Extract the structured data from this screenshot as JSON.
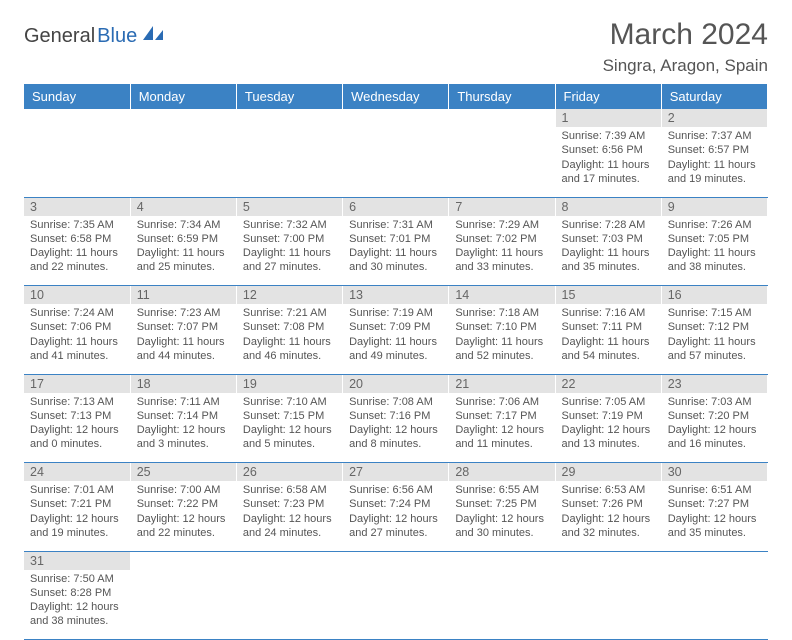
{
  "logo": {
    "text1": "General",
    "text2": "Blue"
  },
  "title": "March 2024",
  "location": "Singra, Aragon, Spain",
  "day_headers": [
    "Sunday",
    "Monday",
    "Tuesday",
    "Wednesday",
    "Thursday",
    "Friday",
    "Saturday"
  ],
  "colors": {
    "header_bg": "#3b82c4",
    "header_fg": "#ffffff",
    "daynum_bg": "#e3e3e3",
    "text": "#555555",
    "border": "#3b82c4"
  },
  "weeks": [
    [
      null,
      null,
      null,
      null,
      null,
      {
        "n": "1",
        "sunrise": "7:39 AM",
        "sunset": "6:56 PM",
        "daylight": "11 hours and 17 minutes."
      },
      {
        "n": "2",
        "sunrise": "7:37 AM",
        "sunset": "6:57 PM",
        "daylight": "11 hours and 19 minutes."
      }
    ],
    [
      {
        "n": "3",
        "sunrise": "7:35 AM",
        "sunset": "6:58 PM",
        "daylight": "11 hours and 22 minutes."
      },
      {
        "n": "4",
        "sunrise": "7:34 AM",
        "sunset": "6:59 PM",
        "daylight": "11 hours and 25 minutes."
      },
      {
        "n": "5",
        "sunrise": "7:32 AM",
        "sunset": "7:00 PM",
        "daylight": "11 hours and 27 minutes."
      },
      {
        "n": "6",
        "sunrise": "7:31 AM",
        "sunset": "7:01 PM",
        "daylight": "11 hours and 30 minutes."
      },
      {
        "n": "7",
        "sunrise": "7:29 AM",
        "sunset": "7:02 PM",
        "daylight": "11 hours and 33 minutes."
      },
      {
        "n": "8",
        "sunrise": "7:28 AM",
        "sunset": "7:03 PM",
        "daylight": "11 hours and 35 minutes."
      },
      {
        "n": "9",
        "sunrise": "7:26 AM",
        "sunset": "7:05 PM",
        "daylight": "11 hours and 38 minutes."
      }
    ],
    [
      {
        "n": "10",
        "sunrise": "7:24 AM",
        "sunset": "7:06 PM",
        "daylight": "11 hours and 41 minutes."
      },
      {
        "n": "11",
        "sunrise": "7:23 AM",
        "sunset": "7:07 PM",
        "daylight": "11 hours and 44 minutes."
      },
      {
        "n": "12",
        "sunrise": "7:21 AM",
        "sunset": "7:08 PM",
        "daylight": "11 hours and 46 minutes."
      },
      {
        "n": "13",
        "sunrise": "7:19 AM",
        "sunset": "7:09 PM",
        "daylight": "11 hours and 49 minutes."
      },
      {
        "n": "14",
        "sunrise": "7:18 AM",
        "sunset": "7:10 PM",
        "daylight": "11 hours and 52 minutes."
      },
      {
        "n": "15",
        "sunrise": "7:16 AM",
        "sunset": "7:11 PM",
        "daylight": "11 hours and 54 minutes."
      },
      {
        "n": "16",
        "sunrise": "7:15 AM",
        "sunset": "7:12 PM",
        "daylight": "11 hours and 57 minutes."
      }
    ],
    [
      {
        "n": "17",
        "sunrise": "7:13 AM",
        "sunset": "7:13 PM",
        "daylight": "12 hours and 0 minutes."
      },
      {
        "n": "18",
        "sunrise": "7:11 AM",
        "sunset": "7:14 PM",
        "daylight": "12 hours and 3 minutes."
      },
      {
        "n": "19",
        "sunrise": "7:10 AM",
        "sunset": "7:15 PM",
        "daylight": "12 hours and 5 minutes."
      },
      {
        "n": "20",
        "sunrise": "7:08 AM",
        "sunset": "7:16 PM",
        "daylight": "12 hours and 8 minutes."
      },
      {
        "n": "21",
        "sunrise": "7:06 AM",
        "sunset": "7:17 PM",
        "daylight": "12 hours and 11 minutes."
      },
      {
        "n": "22",
        "sunrise": "7:05 AM",
        "sunset": "7:19 PM",
        "daylight": "12 hours and 13 minutes."
      },
      {
        "n": "23",
        "sunrise": "7:03 AM",
        "sunset": "7:20 PM",
        "daylight": "12 hours and 16 minutes."
      }
    ],
    [
      {
        "n": "24",
        "sunrise": "7:01 AM",
        "sunset": "7:21 PM",
        "daylight": "12 hours and 19 minutes."
      },
      {
        "n": "25",
        "sunrise": "7:00 AM",
        "sunset": "7:22 PM",
        "daylight": "12 hours and 22 minutes."
      },
      {
        "n": "26",
        "sunrise": "6:58 AM",
        "sunset": "7:23 PM",
        "daylight": "12 hours and 24 minutes."
      },
      {
        "n": "27",
        "sunrise": "6:56 AM",
        "sunset": "7:24 PM",
        "daylight": "12 hours and 27 minutes."
      },
      {
        "n": "28",
        "sunrise": "6:55 AM",
        "sunset": "7:25 PM",
        "daylight": "12 hours and 30 minutes."
      },
      {
        "n": "29",
        "sunrise": "6:53 AM",
        "sunset": "7:26 PM",
        "daylight": "12 hours and 32 minutes."
      },
      {
        "n": "30",
        "sunrise": "6:51 AM",
        "sunset": "7:27 PM",
        "daylight": "12 hours and 35 minutes."
      }
    ],
    [
      {
        "n": "31",
        "sunrise": "7:50 AM",
        "sunset": "8:28 PM",
        "daylight": "12 hours and 38 minutes."
      },
      null,
      null,
      null,
      null,
      null,
      null
    ]
  ],
  "labels": {
    "sunrise": "Sunrise: ",
    "sunset": "Sunset: ",
    "daylight": "Daylight: "
  }
}
